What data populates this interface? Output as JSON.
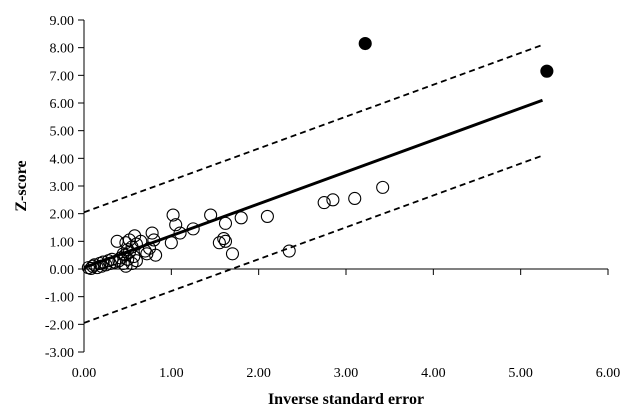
{
  "chart_data": {
    "type": "scatter",
    "title": "",
    "xlabel": "Inverse standard error",
    "ylabel": "Z-score",
    "xlim": [
      0,
      6
    ],
    "ylim": [
      -3,
      9
    ],
    "grid": false,
    "xticks": [
      "0.00",
      "1.00",
      "2.00",
      "3.00",
      "4.00",
      "5.00",
      "6.00"
    ],
    "yticks": [
      "-3.00",
      "-2.00",
      "-1.00",
      "0.00",
      "1.00",
      "2.00",
      "3.00",
      "4.00",
      "5.00",
      "6.00",
      "7.00",
      "8.00",
      "9.00"
    ],
    "series": [
      {
        "marker": "open-circle",
        "points": [
          [
            0.05,
            0.05
          ],
          [
            0.08,
            0.02
          ],
          [
            0.1,
            0.1
          ],
          [
            0.12,
            0.15
          ],
          [
            0.15,
            0.05
          ],
          [
            0.18,
            0.2
          ],
          [
            0.2,
            0.1
          ],
          [
            0.22,
            0.25
          ],
          [
            0.25,
            0.15
          ],
          [
            0.28,
            0.3
          ],
          [
            0.3,
            0.2
          ],
          [
            0.32,
            0.35
          ],
          [
            0.35,
            0.25
          ],
          [
            0.38,
            1.0
          ],
          [
            0.4,
            0.3
          ],
          [
            0.42,
            0.4
          ],
          [
            0.45,
            0.2
          ],
          [
            0.45,
            0.55
          ],
          [
            0.47,
            0.5
          ],
          [
            0.48,
            0.1
          ],
          [
            0.5,
            0.7
          ],
          [
            0.5,
            0.35
          ],
          [
            0.52,
            0.6
          ],
          [
            0.55,
            0.8
          ],
          [
            0.55,
            0.2
          ],
          [
            0.57,
            0.45
          ],
          [
            0.58,
            1.2
          ],
          [
            0.6,
            0.9
          ],
          [
            0.6,
            0.3
          ],
          [
            0.48,
            0.95
          ],
          [
            0.52,
            1.05
          ],
          [
            0.65,
            1.0
          ],
          [
            0.7,
            0.65
          ],
          [
            0.72,
            0.55
          ],
          [
            0.75,
            0.75
          ],
          [
            0.78,
            1.3
          ],
          [
            0.8,
            1.05
          ],
          [
            0.82,
            0.5
          ],
          [
            1.02,
            1.95
          ],
          [
            1.05,
            1.6
          ],
          [
            1.0,
            0.95
          ],
          [
            1.1,
            1.3
          ],
          [
            1.25,
            1.45
          ],
          [
            1.45,
            1.95
          ],
          [
            1.55,
            0.95
          ],
          [
            1.6,
            1.1
          ],
          [
            1.62,
            1.0
          ],
          [
            1.62,
            1.65
          ],
          [
            1.7,
            0.55
          ],
          [
            1.8,
            1.85
          ],
          [
            2.1,
            1.9
          ],
          [
            2.35,
            0.65
          ],
          [
            2.75,
            2.4
          ],
          [
            2.85,
            2.5
          ],
          [
            3.1,
            2.55
          ],
          [
            3.42,
            2.95
          ]
        ]
      },
      {
        "marker": "filled-circle",
        "points": [
          [
            3.22,
            8.15
          ],
          [
            5.3,
            7.15
          ]
        ]
      }
    ],
    "lines": [
      {
        "style": "solid",
        "points": [
          [
            0,
            0.05
          ],
          [
            5.25,
            6.1
          ]
        ]
      },
      {
        "style": "dashed",
        "points": [
          [
            0,
            2.05
          ],
          [
            5.25,
            8.1
          ]
        ]
      },
      {
        "style": "dashed",
        "points": [
          [
            0,
            -1.95
          ],
          [
            5.25,
            4.1
          ]
        ]
      }
    ]
  }
}
